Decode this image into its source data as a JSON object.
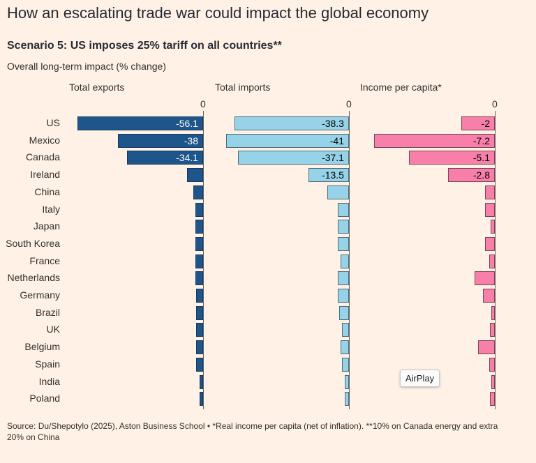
{
  "title": "How an escalating trade war could impact the global economy",
  "subtitle": "Scenario 5: US imposes 25% tariff on all countries**",
  "description": "Overall long-term impact (% change)",
  "source": "Source: Du/Shepotylo (2025), Aston Business School • *Real income per capita (net of inflation). **10% on Canada energy and extra 20% on China",
  "tooltip": "AirPlay",
  "colors": {
    "background": "#fff1e5",
    "exports": "#1e558b",
    "imports": "#96d3e8",
    "income": "#f77faa"
  },
  "chart_data": {
    "type": "bar",
    "orientation": "horizontal",
    "categories": [
      "US",
      "Mexico",
      "Canada",
      "Ireland",
      "China",
      "Italy",
      "Japan",
      "South Korea",
      "France",
      "Netherlands",
      "Germany",
      "Brazil",
      "UK",
      "Belgium",
      "Spain",
      "India",
      "Poland"
    ],
    "zero_label": "0",
    "series": [
      {
        "key": "exports",
        "name": "Total exports",
        "xlim": [
          -56.1,
          0
        ],
        "values": [
          -56.1,
          -38,
          -34.1,
          -7.2,
          -4.5,
          -3.5,
          -3.5,
          -3.5,
          -3.4,
          -3.3,
          -3.2,
          -3.0,
          -3.0,
          -3.0,
          -3.0,
          -1.5,
          -1.5
        ],
        "labels": [
          "-56.1",
          "-38",
          "-34.1",
          null,
          null,
          null,
          null,
          null,
          null,
          null,
          null,
          null,
          null,
          null,
          null,
          null,
          null
        ]
      },
      {
        "key": "imports",
        "name": "Total imports",
        "xlim": [
          -41,
          0
        ],
        "values": [
          -38.3,
          -41,
          -37.1,
          -13.5,
          -7.2,
          -3.8,
          -3.7,
          -3.7,
          -2.7,
          -3.8,
          -3.8,
          -3.2,
          -2.3,
          -2.8,
          -2.3,
          -1.3,
          -1.3
        ],
        "labels": [
          "-38.3",
          "-41",
          "-37.1",
          "-13.5",
          null,
          null,
          null,
          null,
          null,
          null,
          null,
          null,
          null,
          null,
          null,
          null,
          null
        ]
      },
      {
        "key": "income",
        "name": "Income per capita*",
        "xlim": [
          -7.2,
          0
        ],
        "values": [
          -2,
          -7.2,
          -5.1,
          -2.8,
          -0.6,
          -0.6,
          -0.25,
          -0.6,
          -0.35,
          -1.2,
          -0.7,
          -0.2,
          -0.3,
          -1.0,
          -0.35,
          -0.2,
          -0.3
        ],
        "labels": [
          "-2",
          "-7.2",
          "-5.1",
          "-2.8",
          null,
          null,
          null,
          null,
          null,
          null,
          null,
          null,
          null,
          null,
          null,
          null,
          null
        ]
      }
    ]
  }
}
